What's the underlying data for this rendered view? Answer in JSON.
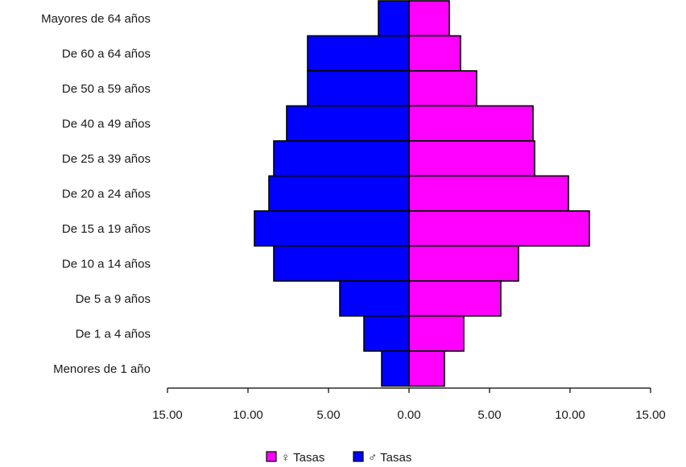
{
  "chart_data": {
    "type": "bar",
    "orientation": "horizontal-population-pyramid",
    "title": "",
    "xlabel": "",
    "ylabel": "",
    "categories": [
      "Mayores de 64 años",
      "De 60 a 64 años",
      "De 50 a 59 años",
      "De 40 a 49 años",
      "De 25 a 39 años",
      "De 20 a 24 años",
      "De 15 a 19 años",
      "De 10 a 14 años",
      "De 5 a 9 años",
      "De 1 a 4 años",
      "Menores de 1 año"
    ],
    "series": [
      {
        "name": "♀ Tasas",
        "side": "right",
        "color": "#ff00ff",
        "values": [
          2.5,
          3.2,
          4.2,
          7.7,
          7.8,
          9.9,
          11.2,
          6.8,
          5.7,
          3.4,
          2.2
        ]
      },
      {
        "name": "♂ Tasas",
        "side": "left",
        "color": "#0000ff",
        "values": [
          1.9,
          6.3,
          6.3,
          7.6,
          8.4,
          8.7,
          9.6,
          8.4,
          4.3,
          2.8,
          1.7
        ]
      }
    ],
    "xlim": [
      -15,
      15
    ],
    "x_ticks": [
      "15.00",
      "10.00",
      "5.00",
      "0.00",
      "5.00",
      "10.00",
      "15.00"
    ],
    "x_tick_values": [
      -15,
      -10,
      -5,
      0,
      5,
      10,
      15
    ],
    "grid": false,
    "legend_position": "bottom-center"
  }
}
